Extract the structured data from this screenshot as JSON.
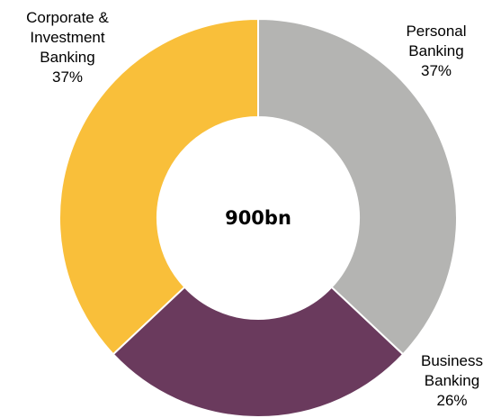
{
  "chart_data": {
    "type": "donut",
    "categories": [
      "Personal Banking",
      "Business Banking",
      "Corporate & Investment Banking"
    ],
    "values": [
      37,
      26,
      37
    ],
    "value_labels": [
      "37%",
      "26%",
      "37%"
    ],
    "colors": [
      "#b4b4b2",
      "#6a3a5d",
      "#f9bf3a"
    ],
    "center_label": "900bn"
  }
}
